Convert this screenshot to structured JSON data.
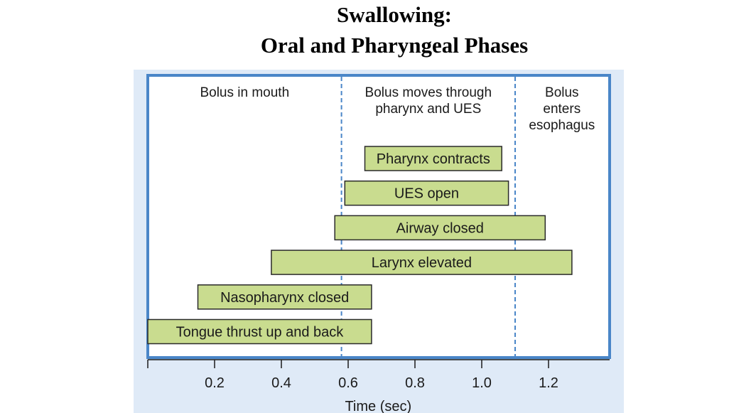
{
  "title": {
    "line1": "Swallowing:",
    "line2": "Oral and Pharyngeal Phases"
  },
  "chart_data": {
    "type": "bar",
    "orientation": "horizontal-intervals",
    "xlabel": "Time (sec)",
    "xlim": [
      0.0,
      1.38
    ],
    "x_ticks": [
      0.2,
      0.4,
      0.6,
      0.8,
      1.0,
      1.2
    ],
    "x_tick_labels": [
      "0.2",
      "0.4",
      "0.6",
      "0.8",
      "1.0",
      "1.2"
    ],
    "grid": false,
    "phase_boundaries": [
      0.58,
      1.1
    ],
    "phases": [
      {
        "label": "Bolus in mouth",
        "lines": [
          "Bolus in mouth"
        ],
        "start": 0.0,
        "end": 0.58
      },
      {
        "label": "Bolus moves through pharynx and UES",
        "lines": [
          "Bolus moves through",
          "pharynx and UES"
        ],
        "start": 0.58,
        "end": 1.1
      },
      {
        "label": "Bolus enters esophagus",
        "lines": [
          "Bolus",
          "enters",
          "esophagus"
        ],
        "start": 1.1,
        "end": 1.38
      }
    ],
    "intervals": [
      {
        "label": "Pharynx contracts",
        "start": 0.65,
        "end": 1.06
      },
      {
        "label": "UES open",
        "start": 0.59,
        "end": 1.08
      },
      {
        "label": "Airway closed",
        "start": 0.56,
        "end": 1.19
      },
      {
        "label": "Larynx elevated",
        "start": 0.37,
        "end": 1.27
      },
      {
        "label": "Nasopharynx closed",
        "start": 0.15,
        "end": 0.67
      },
      {
        "label": "Tongue thrust up and back",
        "start": 0.0,
        "end": 0.67
      }
    ],
    "colors": {
      "bar_fill": "#c9dc8f",
      "bar_stroke": "#2a2a2a",
      "frame": "#4a86c8",
      "panel": "#dfeaf7",
      "boundary_line": "#4a86c8"
    }
  }
}
